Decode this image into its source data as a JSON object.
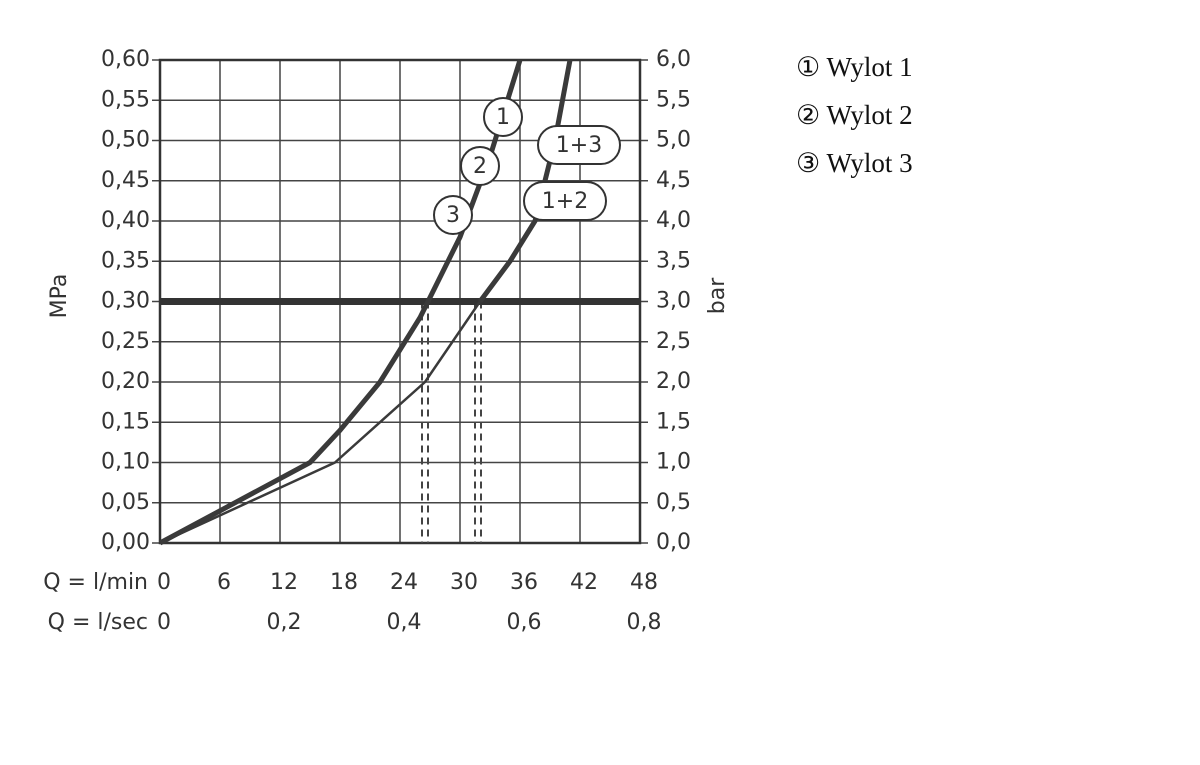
{
  "chart_data": {
    "type": "line",
    "ylabel": "MPa",
    "y2label": "bar",
    "xlabel": "Q = l/min",
    "x2label": "Q = l/sec",
    "xlim": [
      0,
      48
    ],
    "xticks": [
      0,
      6,
      12,
      18,
      24,
      30,
      36,
      42,
      48
    ],
    "x2lim": [
      0,
      0.8
    ],
    "x2ticks": [
      0,
      {
        "value": 0.2,
        "label": "0,2"
      },
      {
        "value": 0.4,
        "label": "0,4"
      },
      {
        "value": 0.6,
        "label": "0,6"
      },
      {
        "value": 0.8,
        "label": "0,8"
      }
    ],
    "ylim": [
      0,
      0.6
    ],
    "yticks": [
      {
        "value": 0,
        "label": "0,00"
      },
      {
        "value": 0.05,
        "label": "0,05"
      },
      {
        "value": 0.1,
        "label": "0,10"
      },
      {
        "value": 0.15,
        "label": "0,15"
      },
      {
        "value": 0.2,
        "label": "0,20"
      },
      {
        "value": 0.25,
        "label": "0,25"
      },
      {
        "value": 0.3,
        "label": "0,30"
      },
      {
        "value": 0.35,
        "label": "0,35"
      },
      {
        "value": 0.4,
        "label": "0,40"
      },
      {
        "value": 0.45,
        "label": "0,45"
      },
      {
        "value": 0.5,
        "label": "0,50"
      },
      {
        "value": 0.55,
        "label": "0,55"
      },
      {
        "value": 0.6,
        "label": "0,60"
      }
    ],
    "y2lim": [
      0,
      6
    ],
    "y2ticks": [
      {
        "value": 0,
        "label": "0,0"
      },
      {
        "value": 0.5,
        "label": "0,5"
      },
      {
        "value": 1,
        "label": "1,0"
      },
      {
        "value": 1.5,
        "label": "1,5"
      },
      {
        "value": 2,
        "label": "2,0"
      },
      {
        "value": 2.5,
        "label": "2,5"
      },
      {
        "value": 3,
        "label": "3,0"
      },
      {
        "value": 3.5,
        "label": "3,5"
      },
      {
        "value": 4,
        "label": "4,0"
      },
      {
        "value": 4.5,
        "label": "4,5"
      },
      {
        "value": 5,
        "label": "5,0"
      },
      {
        "value": 5.5,
        "label": "5,5"
      },
      {
        "value": 6,
        "label": "6,0"
      }
    ],
    "grid": true,
    "threshold": 0.3,
    "reference_x": [
      26.5,
      31.8
    ],
    "series": [
      {
        "color": "#3a3a3a",
        "linewidth": 5,
        "x": [
          0,
          15,
          18,
          22,
          26,
          30,
          33,
          36
        ],
        "values": [
          0,
          0.1,
          0.14,
          0.2,
          0.28,
          0.38,
          0.48,
          0.6
        ]
      },
      {
        "color": "#3a3a3a",
        "linewidth": 2,
        "x": [
          22,
          24.5,
          27
        ],
        "values": [
          0.2,
          0.25,
          0.3
        ]
      },
      {
        "color": "#3a3a3a",
        "linewidth": 2.5,
        "x": [
          0,
          17.5,
          26.5,
          32
        ],
        "values": [
          0,
          0.1,
          0.2,
          0.3
        ]
      },
      {
        "color": "#3a3a3a",
        "linewidth": 5,
        "x": [
          32,
          35,
          37.5,
          39.5,
          41
        ],
        "values": [
          0.3,
          0.35,
          0.4,
          0.5,
          0.6
        ]
      }
    ],
    "curve_labels": [
      "1",
      "2",
      "3",
      "1+3",
      "1+2"
    ],
    "legend_items": [
      "① Wylot 1",
      "② Wylot 2",
      "③ Wylot 3"
    ]
  }
}
